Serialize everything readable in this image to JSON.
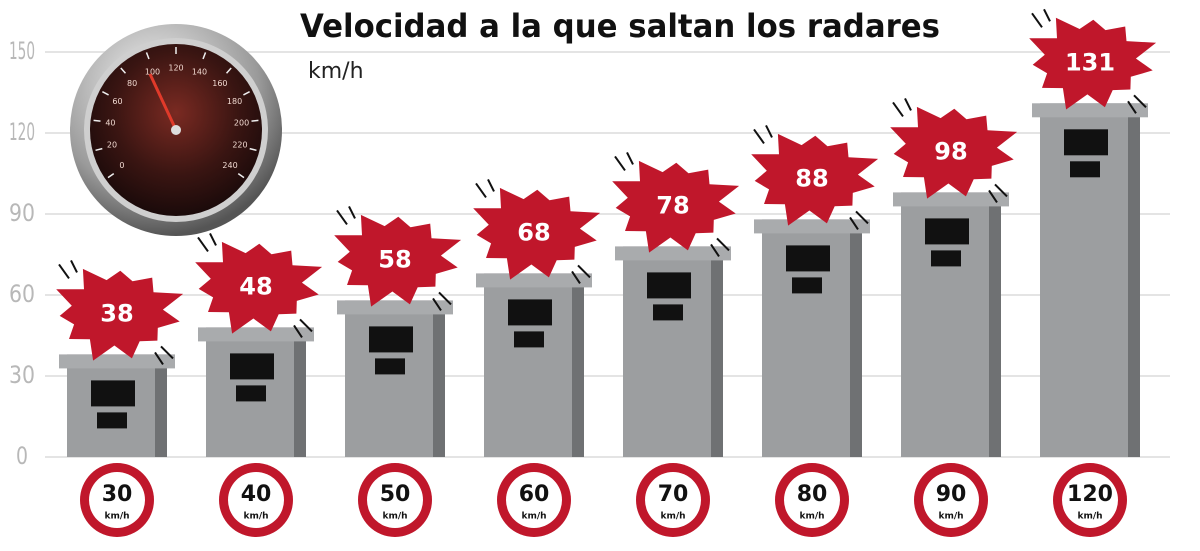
{
  "chart_data": {
    "type": "bar",
    "title": "Velocidad a la que saltan los radares",
    "subtitle": "km/h",
    "categories": [
      "30",
      "40",
      "50",
      "60",
      "70",
      "80",
      "90",
      "120"
    ],
    "category_unit": "km/h",
    "values": [
      38,
      48,
      58,
      68,
      78,
      88,
      98,
      131
    ],
    "color": "#9c9ea0",
    "label_color": "#c0172b",
    "ylim": [
      0,
      150
    ],
    "yticks": [
      0,
      30,
      60,
      90,
      120,
      150
    ],
    "grid": true,
    "gauge_labels": [
      "0",
      "20",
      "40",
      "60",
      "80",
      "100",
      "120",
      "140",
      "160",
      "180",
      "200",
      "220",
      "240"
    ]
  }
}
